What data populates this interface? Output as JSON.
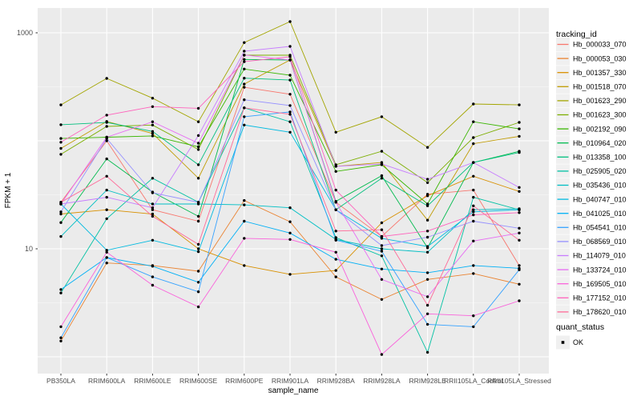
{
  "chart_data": {
    "type": "line",
    "title": "",
    "x_axis": {
      "label": "sample_name",
      "categories": [
        "PB350LA",
        "RRIM600LA",
        "RRIM600LE",
        "RRIM600SE",
        "RRIM600PE",
        "RRIM901LA",
        "RRIM928BA",
        "RRIM928LA",
        "RRIM928LE",
        "RRII105LA_Control",
        "RRII105LA_Stressed"
      ]
    },
    "y_axis": {
      "label": "FPKM + 1",
      "scale": "log10",
      "ticks": [
        1000,
        10
      ],
      "tick_labels": [
        "1000",
        "10"
      ],
      "ylim": [
        0.7,
        1650
      ],
      "gridlines_major": [
        1,
        10,
        100,
        1000
      ],
      "gridlines_minor": [
        3.162,
        31.62,
        316.2
      ]
    },
    "legend": {
      "title": "tracking_id",
      "position": "right",
      "quant_status_title": "quant_status",
      "quant_status_items": [
        {
          "label": "OK",
          "marker": "black-point"
        }
      ]
    },
    "style_colors": {
      "panel_background": "#EBEBEB",
      "gridline": "#FFFFFF",
      "point": "#000000",
      "tick_text": "#4D4D4D",
      "axis_title": "#000000",
      "legend_key_background": "#F0F0F0"
    },
    "series": [
      {
        "name": "Hb_000033_070",
        "color": "#F8766D",
        "values": [
          27,
          100,
          23,
          18,
          313,
          270,
          27,
          13,
          32,
          35,
          7
        ]
      },
      {
        "name": "Hb_000053_030",
        "color": "#EA8331",
        "values": [
          1.4,
          7.4,
          7.0,
          6.2,
          28,
          17.8,
          5.5,
          3.4,
          5.2,
          5.9,
          4.7
        ]
      },
      {
        "name": "Hb_001357_330",
        "color": "#D89000",
        "values": [
          21,
          23,
          21,
          10,
          7.0,
          5.8,
          6.3,
          17.4,
          31,
          47,
          34
        ]
      },
      {
        "name": "Hb_001518_070",
        "color": "#C09B00",
        "values": [
          85,
          151,
          117,
          45,
          335,
          560,
          58,
          63,
          18.4,
          94,
          110
        ]
      },
      {
        "name": "Hb_001623_290",
        "color": "#A3A500",
        "values": [
          215,
          378,
          248,
          150,
          812,
          1270,
          120,
          167,
          87,
          219,
          215
        ]
      },
      {
        "name": "Hb_001623_300",
        "color": "#7CAE00",
        "values": [
          75,
          136,
          140,
          83,
          620,
          620,
          60,
          80,
          41,
          107,
          148
        ]
      },
      {
        "name": "Hb_002192_090",
        "color": "#39B600",
        "values": [
          105,
          108,
          111,
          88,
          462,
          405,
          52,
          60,
          26,
          150,
          129
        ]
      },
      {
        "name": "Hb_010964_020",
        "color": "#00BB4E",
        "values": [
          17.5,
          68,
          33.5,
          20,
          567,
          560,
          27.5,
          47.5,
          10.2,
          63,
          80
        ]
      },
      {
        "name": "Hb_013358_100",
        "color": "#00BF7D",
        "values": [
          141,
          148,
          122,
          60,
          380,
          365,
          23,
          45,
          25,
          63,
          78
        ]
      },
      {
        "name": "Hb_025905_020",
        "color": "#00C1A3",
        "values": [
          3.9,
          19,
          45,
          27,
          202,
          150,
          12.7,
          8.6,
          1.1,
          30,
          23
        ]
      },
      {
        "name": "Hb_035436_010",
        "color": "#00BFC4",
        "values": [
          13,
          35,
          26,
          26,
          25.5,
          24,
          12.2,
          10,
          9.3,
          23,
          23.5
        ]
      },
      {
        "name": "Hb_040747_010",
        "color": "#00BAE0",
        "values": [
          26,
          9.7,
          12,
          9.4,
          140,
          120,
          23,
          12.5,
          10.5,
          22,
          23
        ]
      },
      {
        "name": "Hb_041025_010",
        "color": "#00B0F6",
        "values": [
          4.2,
          8.3,
          6.9,
          4.9,
          18,
          14,
          8.0,
          6.5,
          6.0,
          7.0,
          6.6
        ]
      },
      {
        "name": "Hb_054541_010",
        "color": "#35A2FF",
        "values": [
          1.5,
          8.3,
          5.5,
          4.0,
          167,
          185,
          12,
          9.5,
          2.0,
          1.9,
          6.4
        ]
      },
      {
        "name": "Hb_068569_010",
        "color": "#9590FF",
        "values": [
          22,
          105,
          33,
          27,
          240,
          212,
          23,
          10.7,
          12.8,
          18,
          15.5
        ]
      },
      {
        "name": "Hb_114079_010",
        "color": "#C77CFF",
        "values": [
          26,
          30,
          24,
          112,
          676,
          748,
          58,
          61,
          44,
          63,
          37
        ]
      },
      {
        "name": "Hb_133724_010",
        "color": "#E76BF3",
        "values": [
          26,
          108,
          150,
          95,
          624,
          560,
          27,
          5.2,
          3.6,
          11.8,
          14
        ]
      },
      {
        "name": "Hb_169505_010",
        "color": "#FA62DB",
        "values": [
          1.9,
          9.3,
          4.6,
          2.9,
          12.5,
          12.2,
          9.3,
          1.05,
          2.5,
          2.4,
          3.3
        ]
      },
      {
        "name": "Hb_177152_010",
        "color": "#FF62BC",
        "values": [
          97,
          173,
          207,
          200,
          540,
          600,
          35,
          13,
          14.6,
          20.6,
          21.6
        ]
      },
      {
        "name": "Hb_178620_010",
        "color": "#FF6A98",
        "values": [
          27,
          47,
          20,
          11,
          202,
          176,
          14.6,
          15,
          3.0,
          25,
          12
        ]
      }
    ]
  }
}
